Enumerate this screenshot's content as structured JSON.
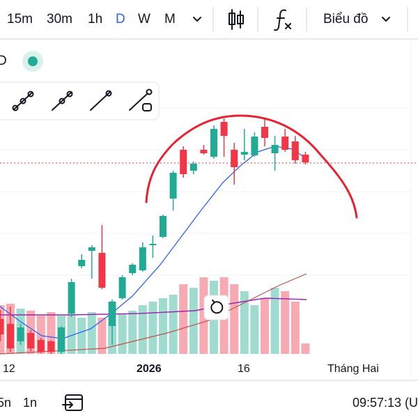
{
  "toolbar": {
    "intervals": [
      "15m",
      "30m",
      "1h",
      "D",
      "W",
      "M"
    ],
    "chart_type": "Biểu đồ"
  },
  "legend": {
    "symbol_fragment": "D"
  },
  "chart_data": {
    "type": "candlestick",
    "x_labels": [
      "12",
      "2026",
      "16",
      "Tháng Hai"
    ],
    "candles": {
      "open": [
        5.2,
        4.5,
        2,
        3.2,
        2.2,
        2,
        0.5,
        6,
        12.8,
        15,
        14.7,
        4.2,
        8.2,
        11.8,
        12.2,
        15.8,
        17,
        22.5,
        29.5,
        26.5,
        29.5,
        28.5,
        33.5,
        29.5,
        28.8,
        28.7,
        32.8,
        29,
        31.4,
        30.7,
        28.8
      ],
      "high": [
        6.5,
        7,
        4.5,
        3.6,
        2.5,
        2.2,
        4.2,
        11,
        14.5,
        15.8,
        18.7,
        8,
        11.5,
        13.2,
        16.2,
        17.2,
        20.2,
        26.5,
        30,
        27.8,
        30.2,
        33,
        34,
        30.5,
        32.5,
        32,
        34,
        31.5,
        32.5,
        31.5,
        29.2
      ],
      "low": [
        2,
        0.5,
        1.5,
        0.6,
        0.3,
        0.2,
        0.2,
        5.5,
        12.5,
        11,
        9.5,
        1.5,
        8,
        11.5,
        12,
        14,
        16.8,
        20.8,
        25.5,
        26,
        28.8,
        28.2,
        28.5,
        24.5,
        28,
        28.5,
        30,
        26.5,
        29.2,
        27.5,
        27.4
      ],
      "close": [
        3,
        1,
        4,
        1,
        0.5,
        0.5,
        4,
        10.5,
        13.7,
        15.5,
        9.7,
        7.7,
        11.2,
        13,
        15.5,
        16,
        20,
        26.2,
        26,
        27.5,
        29,
        32.5,
        31.5,
        27,
        29.2,
        31.4,
        31.2,
        30.2,
        29.5,
        28,
        27.7
      ]
    },
    "volume": [
      70,
      72,
      65,
      62,
      55,
      60,
      55,
      58,
      52,
      60,
      52,
      75,
      58,
      62,
      70,
      75,
      80,
      85,
      100,
      95,
      110,
      105,
      110,
      100,
      90,
      70,
      80,
      95,
      90,
      75,
      15
    ],
    "ylim": [
      0,
      41
    ],
    "volume_lim": [
      0,
      120
    ],
    "up_color": "#22ab94",
    "down_color": "#f23645",
    "volume_up_color": "#9fdccf",
    "volume_down_color": "#f7aab1"
  },
  "bottom_bar": {
    "ranges": [
      "5n",
      "1n"
    ],
    "clock": "09:57:13 (U"
  }
}
